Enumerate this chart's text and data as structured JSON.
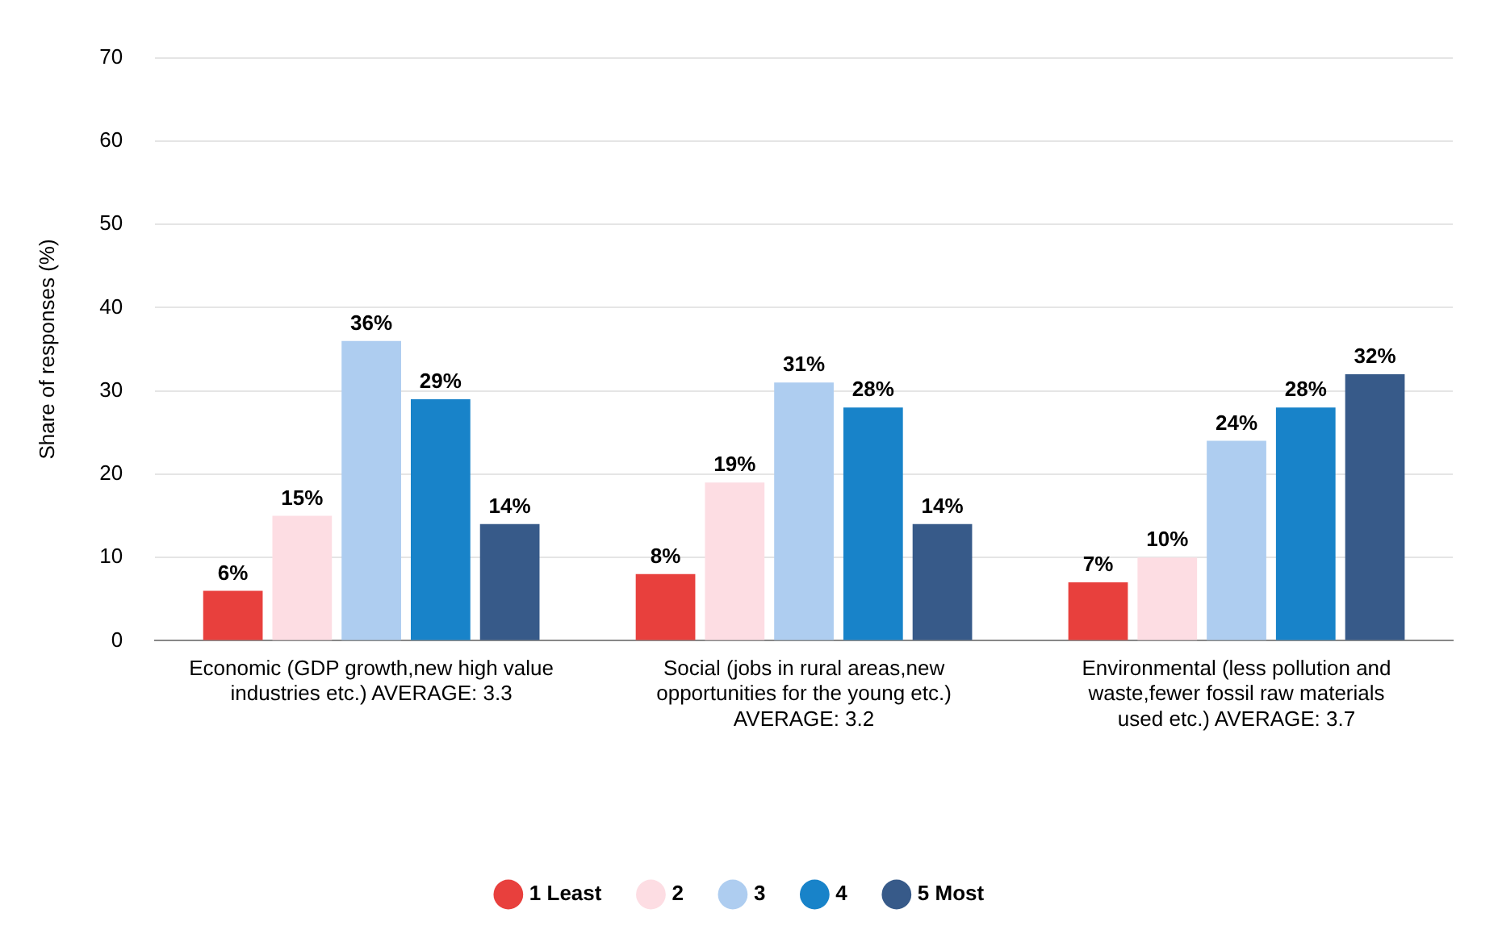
{
  "chart_data": {
    "type": "bar",
    "ylabel": "Share of responses (%)",
    "categories": [
      "Economic (GDP growth,new high value industries etc.) AVERAGE: 3.3",
      "Social (jobs in rural areas,new opportunities for the young etc.) AVERAGE: 3.2",
      "Environmental (less pollution and waste,fewer fossil raw materials used etc.) AVERAGE: 3.7"
    ],
    "series": [
      {
        "name": "1 Least",
        "color": "#e8403d",
        "values": [
          6,
          8,
          7
        ],
        "value_labels": [
          "6%",
          "8%",
          "7%"
        ]
      },
      {
        "name": "2",
        "color": "#fddde3",
        "values": [
          15,
          19,
          10
        ],
        "value_labels": [
          "15%",
          "19%",
          "10%"
        ]
      },
      {
        "name": "3",
        "color": "#aecdf0",
        "values": [
          36,
          31,
          24
        ],
        "value_labels": [
          "36%",
          "31%",
          "24%"
        ]
      },
      {
        "name": "4",
        "color": "#1883c9",
        "values": [
          29,
          28,
          28
        ],
        "value_labels": [
          "29%",
          "28%",
          "28%"
        ]
      },
      {
        "name": "5 Most",
        "color": "#375a89",
        "values": [
          14,
          14,
          32
        ],
        "value_labels": [
          "14%",
          "14%",
          "32%"
        ]
      }
    ],
    "ylim": [
      0,
      70
    ],
    "yticks": [
      0,
      10,
      20,
      30,
      40,
      50,
      60,
      70
    ],
    "grid": "y",
    "legend": "bottom"
  }
}
